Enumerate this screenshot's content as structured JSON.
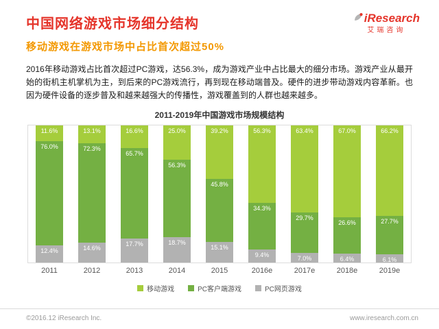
{
  "header": {
    "title": "中国网络游戏市场细分结构",
    "subtitle": "移动游戏在游戏市场中占比首次超过50%",
    "logo": {
      "brand": "iResearch",
      "brand_cn": "艾瑞咨询"
    }
  },
  "body": {
    "paragraph": "2016年移动游戏占比首次超过PC游戏，达56.3%，成为游戏产业中占比最大的细分市场。游戏产业从最开始的街机主机掌机为主，到后来的PC游戏流行，再到现在移动端普及。硬件的进步带动游戏内容革新。也因为硬件设备的逐步普及和越来越强大的传播性，游戏覆盖到的人群也越来越多。",
    "colors": {
      "accent_red": "#e5352b",
      "accent_orange": "#f39800"
    }
  },
  "chart_data": {
    "type": "bar",
    "stacked": true,
    "percent": true,
    "title": "2011-2019年中国游戏市场规模结构",
    "categories": [
      "2011",
      "2012",
      "2013",
      "2014",
      "2015",
      "2016e",
      "2017e",
      "2018e",
      "2019e"
    ],
    "series": [
      {
        "name": "PC网页游戏",
        "color": "#b2b2b2",
        "values": [
          12.4,
          14.6,
          17.7,
          18.7,
          15.1,
          9.4,
          7.0,
          6.4,
          6.1
        ]
      },
      {
        "name": "PC客户端游戏",
        "color": "#74b043",
        "values": [
          76.0,
          72.3,
          65.7,
          56.3,
          45.8,
          34.3,
          29.7,
          26.6,
          27.7
        ]
      },
      {
        "name": "移动游戏",
        "color": "#a5cd3c",
        "values": [
          11.6,
          13.1,
          16.6,
          25.0,
          39.2,
          56.3,
          63.4,
          67.0,
          66.2
        ]
      }
    ],
    "legend": [
      "移动游戏",
      "PC客户端游戏",
      "PC网页游戏"
    ],
    "legend_position": "bottom",
    "ylim": [
      0,
      100
    ],
    "grid": false
  },
  "footer": {
    "left": "©2016.12 iResearch Inc.",
    "right": "www.iresearch.com.cn"
  }
}
